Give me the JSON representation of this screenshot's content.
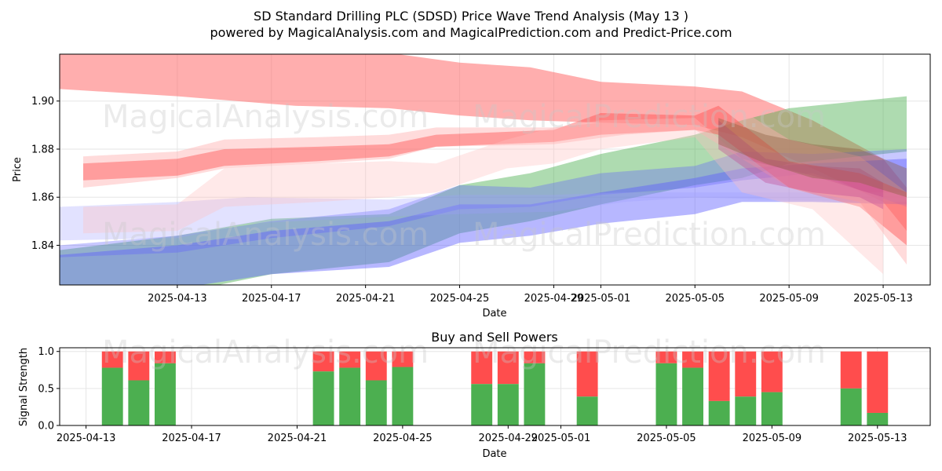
{
  "title_line1": "SD Standard Drilling PLC (SDSD) Price Wave Trend Analysis (May 13 )",
  "title_line2": "powered by MagicalAnalysis.com and MagicalPrediction.com and Predict-Price.com",
  "watermarks": [
    "MagicalAnalysis.com",
    "MagicalPrediction.com"
  ],
  "chart_data": [
    {
      "type": "area",
      "name": "price-wave",
      "xlabel": "Date",
      "ylabel": "Price",
      "xdomain": [
        "2025-04-08",
        "2025-05-15"
      ],
      "ylim": [
        1.8235,
        1.9195
      ],
      "yticks": [
        1.84,
        1.86,
        1.88,
        1.9
      ],
      "ytick_labels": [
        "1.84",
        "1.86",
        "1.88",
        "1.90"
      ],
      "xticks": [
        "2025-04-13",
        "2025-04-17",
        "2025-04-21",
        "2025-04-25",
        "2025-04-29",
        "2025-05-01",
        "2025-05-05",
        "2025-05-09",
        "2025-05-13"
      ],
      "xtick_labels": [
        "2025-04-13",
        "2025-04-17",
        "2025-04-21",
        "2025-04-25",
        "2025-04-29",
        "2025-05-01",
        "2025-05-05",
        "2025-05-09",
        "2025-05-13"
      ],
      "grid": true,
      "bands": [
        {
          "name": "red-top",
          "color": "#ff6b6b",
          "opacity": 0.55,
          "x": [
            "2025-04-08",
            "2025-04-13",
            "2025-04-18",
            "2025-04-22",
            "2025-04-25",
            "2025-04-28",
            "2025-05-01",
            "2025-05-05",
            "2025-05-07",
            "2025-05-10",
            "2025-05-13",
            "2025-05-14"
          ],
          "upper": [
            1.925,
            1.922,
            1.921,
            1.92,
            1.916,
            1.914,
            1.908,
            1.906,
            1.904,
            1.892,
            1.876,
            1.864
          ],
          "lower": [
            1.905,
            1.902,
            1.898,
            1.897,
            1.894,
            1.892,
            1.891,
            1.89,
            1.885,
            1.872,
            1.858,
            1.846
          ]
        },
        {
          "name": "green",
          "color": "#4caf50",
          "opacity": 0.45,
          "x": [
            "2025-04-08",
            "2025-04-13",
            "2025-04-17",
            "2025-04-22",
            "2025-04-25",
            "2025-04-28",
            "2025-05-01",
            "2025-05-05",
            "2025-05-07",
            "2025-05-09",
            "2025-05-14"
          ],
          "upper": [
            1.838,
            1.844,
            1.851,
            1.853,
            1.865,
            1.87,
            1.878,
            1.886,
            1.892,
            1.897,
            1.902
          ],
          "lower": [
            1.815,
            1.82,
            1.828,
            1.833,
            1.845,
            1.85,
            1.857,
            1.865,
            1.868,
            1.874,
            1.879
          ]
        },
        {
          "name": "blue-upper",
          "color": "#6060ff",
          "opacity": 0.35,
          "x": [
            "2025-04-08",
            "2025-04-13",
            "2025-04-17",
            "2025-04-22",
            "2025-04-25",
            "2025-04-28",
            "2025-05-01",
            "2025-05-05",
            "2025-05-07",
            "2025-05-10",
            "2025-05-14"
          ],
          "upper": [
            1.84,
            1.844,
            1.85,
            1.855,
            1.865,
            1.864,
            1.87,
            1.873,
            1.879,
            1.878,
            1.88
          ],
          "lower": [
            1.835,
            1.837,
            1.843,
            1.848,
            1.855,
            1.856,
            1.861,
            1.864,
            1.867,
            1.87,
            1.856
          ]
        },
        {
          "name": "blue-lower",
          "color": "#6060ff",
          "opacity": 0.45,
          "x": [
            "2025-04-08",
            "2025-04-13",
            "2025-04-17",
            "2025-04-22",
            "2025-04-25",
            "2025-04-28",
            "2025-05-01",
            "2025-05-05",
            "2025-05-07",
            "2025-05-10",
            "2025-05-14"
          ],
          "upper": [
            1.836,
            1.84,
            1.846,
            1.85,
            1.857,
            1.857,
            1.862,
            1.868,
            1.872,
            1.874,
            1.876
          ],
          "lower": [
            1.82,
            1.822,
            1.828,
            1.831,
            1.841,
            1.844,
            1.849,
            1.853,
            1.858,
            1.858,
            1.857
          ]
        },
        {
          "name": "lavender",
          "color": "#a0a0ff",
          "opacity": 0.3,
          "x": [
            "2025-04-08",
            "2025-04-13",
            "2025-04-16",
            "2025-04-22",
            "2025-04-25",
            "2025-04-29",
            "2025-05-02",
            "2025-05-05",
            "2025-05-08",
            "2025-05-14"
          ],
          "upper": [
            1.856,
            1.858,
            1.86,
            1.859,
            1.861,
            1.861,
            1.862,
            1.862,
            1.862,
            1.862
          ],
          "lower": [
            1.842,
            1.843,
            1.849,
            1.852,
            1.853,
            1.854,
            1.858,
            1.86,
            1.859,
            1.858
          ]
        },
        {
          "name": "pink-1",
          "color": "#ffb0b0",
          "opacity": 0.45,
          "x": [
            "2025-04-09",
            "2025-04-13",
            "2025-04-15",
            "2025-04-19",
            "2025-04-22",
            "2025-04-24",
            "2025-04-29",
            "2025-05-02",
            "2025-05-05",
            "2025-05-07",
            "2025-05-09",
            "2025-05-12",
            "2025-05-14"
          ],
          "upper": [
            1.877,
            1.879,
            1.884,
            1.885,
            1.886,
            1.889,
            1.889,
            1.892,
            1.896,
            1.896,
            1.884,
            1.877,
            1.862
          ],
          "lower": [
            1.864,
            1.868,
            1.872,
            1.874,
            1.876,
            1.881,
            1.882,
            1.886,
            1.888,
            1.876,
            1.864,
            1.858,
            1.832
          ]
        },
        {
          "name": "red-mid",
          "color": "#ff4040",
          "opacity": 0.4,
          "x": [
            "2025-04-09",
            "2025-04-13",
            "2025-04-15",
            "2025-04-19",
            "2025-04-22",
            "2025-04-24",
            "2025-04-29",
            "2025-05-01",
            "2025-05-05",
            "2025-05-06",
            "2025-05-09",
            "2025-05-12",
            "2025-05-14"
          ],
          "upper": [
            1.874,
            1.876,
            1.88,
            1.881,
            1.882,
            1.886,
            1.888,
            1.895,
            1.894,
            1.898,
            1.875,
            1.87,
            1.862
          ],
          "lower": [
            1.867,
            1.869,
            1.873,
            1.875,
            1.877,
            1.881,
            1.883,
            1.886,
            1.888,
            1.886,
            1.864,
            1.856,
            1.84
          ]
        },
        {
          "name": "pink-2",
          "color": "#ffc0c0",
          "opacity": 0.35,
          "x": [
            "2025-04-09",
            "2025-04-13",
            "2025-04-15",
            "2025-04-19",
            "2025-04-22",
            "2025-04-24",
            "2025-04-27",
            "2025-04-29",
            "2025-05-01",
            "2025-05-05",
            "2025-05-07",
            "2025-05-10",
            "2025-05-13"
          ],
          "upper": [
            1.856,
            1.857,
            1.872,
            1.874,
            1.875,
            1.874,
            1.884,
            1.889,
            1.892,
            1.893,
            1.876,
            1.869,
            1.86
          ],
          "lower": [
            1.845,
            1.846,
            1.856,
            1.858,
            1.86,
            1.862,
            1.872,
            1.874,
            1.88,
            1.885,
            1.862,
            1.855,
            1.828
          ]
        },
        {
          "name": "magenta",
          "color": "#c04090",
          "opacity": 0.35,
          "x": [
            "2025-05-06",
            "2025-05-08",
            "2025-05-10",
            "2025-05-12",
            "2025-05-13"
          ],
          "upper": [
            1.892,
            1.876,
            1.873,
            1.872,
            1.866
          ],
          "lower": [
            1.88,
            1.866,
            1.862,
            1.86,
            1.855
          ]
        },
        {
          "name": "brown",
          "color": "#8b6040",
          "opacity": 0.4,
          "x": [
            "2025-05-06",
            "2025-05-08",
            "2025-05-10",
            "2025-05-12",
            "2025-05-14"
          ],
          "upper": [
            1.893,
            1.886,
            1.882,
            1.88,
            1.872
          ],
          "lower": [
            1.882,
            1.874,
            1.868,
            1.866,
            1.86
          ]
        }
      ]
    },
    {
      "type": "bar",
      "name": "buy-sell-powers",
      "title": "Buy and Sell Powers",
      "xlabel": "Date",
      "ylabel": "Signal Strength",
      "xdomain": [
        "2025-04-12",
        "2025-05-15"
      ],
      "ylim": [
        0,
        1.05
      ],
      "yticks": [
        0.0,
        0.5,
        1.0
      ],
      "ytick_labels": [
        "0.0",
        "0.5",
        "1.0"
      ],
      "xticks": [
        "2025-04-13",
        "2025-04-17",
        "2025-04-21",
        "2025-04-25",
        "2025-04-29",
        "2025-05-01",
        "2025-05-05",
        "2025-05-09",
        "2025-05-13"
      ],
      "xtick_labels": [
        "2025-04-13",
        "2025-04-17",
        "2025-04-21",
        "2025-04-25",
        "2025-04-29",
        "2025-05-01",
        "2025-05-05",
        "2025-05-09",
        "2025-05-13"
      ],
      "series": [
        {
          "name": "Buy",
          "color": "#4caf50"
        },
        {
          "name": "Sell",
          "color": "#ff4d4d"
        }
      ],
      "dates": [
        "2025-04-14",
        "2025-04-15",
        "2025-04-16",
        "2025-04-22",
        "2025-04-23",
        "2025-04-24",
        "2025-04-25",
        "2025-04-28",
        "2025-04-29",
        "2025-04-30",
        "2025-05-02",
        "2025-05-05",
        "2025-05-06",
        "2025-05-07",
        "2025-05-08",
        "2025-05-09",
        "2025-05-12",
        "2025-05-13"
      ],
      "buy": [
        0.78,
        0.61,
        0.84,
        0.73,
        0.78,
        0.61,
        0.79,
        0.56,
        0.56,
        0.84,
        0.39,
        0.84,
        0.78,
        0.33,
        0.39,
        0.45,
        0.5,
        0.17
      ],
      "total": [
        1,
        1,
        1,
        1,
        1,
        1,
        1,
        1,
        1,
        1,
        1,
        1,
        1,
        1,
        1,
        1,
        1,
        1
      ]
    }
  ]
}
